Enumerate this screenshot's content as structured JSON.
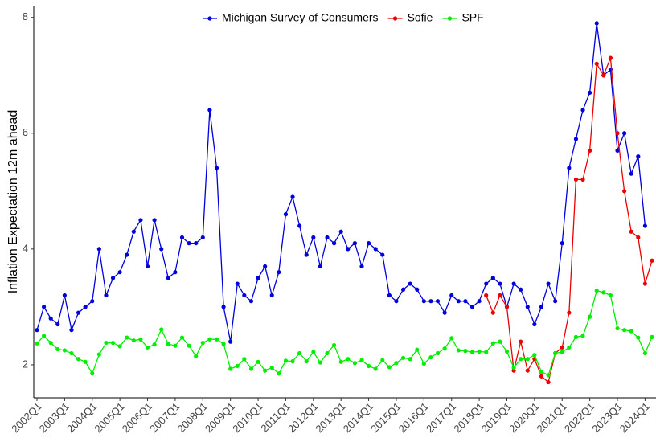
{
  "chart_data": {
    "type": "line",
    "y_label": "Inflation Expectation 12m ahead",
    "categories": [
      "2002Q1",
      null,
      null,
      null,
      "2003Q1",
      null,
      null,
      null,
      "2004Q1",
      null,
      null,
      null,
      "2005Q1",
      null,
      null,
      null,
      "2006Q1",
      null,
      null,
      null,
      "2007Q1",
      null,
      null,
      null,
      "2008Q1",
      null,
      null,
      null,
      "2009Q1",
      null,
      null,
      null,
      "2010Q1",
      null,
      null,
      null,
      "2011Q1",
      null,
      null,
      null,
      "2012Q1",
      null,
      null,
      null,
      "2013Q1",
      null,
      null,
      null,
      "2014Q1",
      null,
      null,
      null,
      "2015Q1",
      null,
      null,
      null,
      "2016Q1",
      null,
      null,
      null,
      "2017Q1",
      null,
      null,
      null,
      "2018Q1",
      null,
      null,
      null,
      "2019Q1",
      null,
      null,
      null,
      "2020Q1",
      null,
      null,
      null,
      "2021Q1",
      null,
      null,
      null,
      "2022Q1",
      null,
      null,
      null,
      "2023Q1",
      null,
      null,
      null,
      "2024Q1",
      null
    ],
    "series": [
      {
        "name": "Michigan Survey of Consumers",
        "color": "#0000dd",
        "values": [
          2.6,
          3.0,
          2.8,
          2.7,
          3.2,
          2.6,
          2.9,
          3.0,
          3.1,
          4.0,
          3.2,
          3.5,
          3.6,
          3.9,
          4.3,
          4.5,
          3.7,
          4.5,
          4.0,
          3.5,
          3.6,
          4.2,
          4.1,
          4.1,
          4.2,
          6.4,
          5.4,
          3.0,
          2.4,
          3.4,
          3.2,
          3.1,
          3.5,
          3.7,
          3.2,
          3.6,
          4.6,
          4.9,
          4.4,
          3.9,
          4.2,
          3.7,
          4.2,
          4.1,
          4.3,
          4.0,
          4.1,
          3.7,
          4.1,
          4.0,
          3.9,
          3.2,
          3.1,
          3.3,
          3.4,
          3.3,
          3.1,
          3.1,
          3.1,
          2.9,
          3.2,
          3.1,
          3.1,
          3.0,
          3.1,
          3.4,
          3.5,
          3.4,
          3.0,
          3.4,
          3.3,
          3.0,
          2.7,
          3.0,
          3.4,
          3.1,
          4.1,
          5.4,
          5.9,
          6.4,
          6.7,
          7.9,
          7.0,
          7.1,
          5.7,
          6.0,
          5.3,
          5.6,
          4.4,
          null
        ]
      },
      {
        "name": "Sofie",
        "color": "#ee0000",
        "values": [
          null,
          null,
          null,
          null,
          null,
          null,
          null,
          null,
          null,
          null,
          null,
          null,
          null,
          null,
          null,
          null,
          null,
          null,
          null,
          null,
          null,
          null,
          null,
          null,
          null,
          null,
          null,
          null,
          null,
          null,
          null,
          null,
          null,
          null,
          null,
          null,
          null,
          null,
          null,
          null,
          null,
          null,
          null,
          null,
          null,
          null,
          null,
          null,
          null,
          null,
          null,
          null,
          null,
          null,
          null,
          null,
          null,
          null,
          null,
          null,
          null,
          null,
          null,
          null,
          null,
          3.2,
          2.9,
          3.2,
          3.0,
          1.9,
          2.4,
          1.9,
          2.1,
          1.8,
          1.7,
          2.2,
          2.3,
          2.9,
          5.2,
          5.2,
          5.7,
          7.2,
          7.0,
          7.3,
          6.0,
          5.0,
          4.3,
          4.2,
          3.4,
          3.8
        ]
      },
      {
        "name": "SPF",
        "color": "#00ee00",
        "values": [
          2.37,
          2.5,
          2.38,
          2.27,
          2.25,
          2.2,
          2.1,
          2.05,
          1.85,
          2.18,
          2.38,
          2.38,
          2.32,
          2.47,
          2.42,
          2.44,
          2.3,
          2.35,
          2.61,
          2.36,
          2.33,
          2.47,
          2.33,
          2.15,
          2.38,
          2.44,
          2.44,
          2.36,
          1.93,
          1.98,
          2.1,
          1.93,
          2.05,
          1.9,
          1.95,
          1.85,
          2.07,
          2.06,
          2.2,
          2.06,
          2.22,
          2.04,
          2.2,
          2.34,
          2.05,
          2.1,
          2.03,
          2.08,
          1.98,
          1.93,
          2.08,
          1.96,
          2.03,
          2.12,
          2.1,
          2.26,
          2.02,
          2.13,
          2.2,
          2.28,
          2.46,
          2.25,
          2.24,
          2.22,
          2.23,
          2.22,
          2.37,
          2.4,
          2.23,
          1.95,
          2.1,
          2.1,
          2.17,
          1.88,
          1.82,
          2.2,
          2.22,
          2.3,
          2.48,
          2.5,
          2.83,
          3.28,
          3.25,
          3.2,
          2.63,
          2.6,
          2.58,
          2.47,
          2.2,
          2.48
        ]
      }
    ],
    "ylim": [
      1.43,
      8.19
    ],
    "yticks": [
      2,
      4,
      6,
      8
    ],
    "grid": false,
    "legend": "top"
  }
}
